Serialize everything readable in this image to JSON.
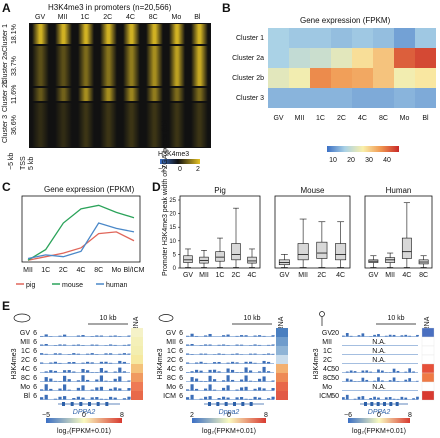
{
  "panelA": {
    "label": "A",
    "title": "H3K4me3 in promoters (n=20,566)",
    "stages": [
      "GV",
      "MII",
      "1C",
      "2C",
      "4C",
      "8C",
      "Mo",
      "Bl"
    ],
    "clusters": [
      "Cluster 1",
      "Cluster 2a",
      "Cluster 2b",
      "Cluster 3"
    ],
    "percents": [
      "18.1%",
      "33.7%",
      "11.6%",
      "36.6%"
    ],
    "tss": "TSS",
    "xmin": "−5 kb",
    "xmax": "5 kb",
    "legend_title": "H3K4me3",
    "legend_ticks": [
      "−2",
      "0",
      "2"
    ]
  },
  "panelB": {
    "label": "B",
    "title": "Gene expression (FPKM)",
    "rows": [
      "Cluster 1",
      "Cluster 2a",
      "Cluster 2b",
      "Cluster 3"
    ],
    "cols": [
      "GV",
      "MII",
      "1C",
      "2C",
      "4C",
      "8C",
      "Mo",
      "Bl"
    ],
    "values": [
      [
        15,
        14,
        14,
        13,
        14,
        13,
        10,
        14
      ],
      [
        15,
        18,
        19,
        22,
        27,
        30,
        40,
        42
      ],
      [
        22,
        24,
        36,
        34,
        33,
        30,
        24,
        26
      ],
      [
        12,
        12,
        12,
        12,
        11,
        11,
        12,
        11
      ]
    ],
    "legend_ticks": [
      "10",
      "20",
      "30",
      "40"
    ]
  },
  "panelC": {
    "label": "C",
    "title": "Gene expression (FPKM)",
    "chart_data": {
      "type": "line",
      "categories": [
        "MII",
        "1C",
        "2C",
        "4C",
        "8C",
        "Mo",
        "Bl/ICM"
      ],
      "series": [
        {
          "name": "pig",
          "color": "#e0665a",
          "values": [
            1,
            3,
            5,
            8,
            16,
            17,
            12
          ]
        },
        {
          "name": "mouse",
          "color": "#2ba35a",
          "values": [
            1,
            7,
            22,
            30,
            32,
            28,
            25
          ]
        },
        {
          "name": "human",
          "color": "#4a88c8",
          "values": [
            2,
            4,
            3,
            6,
            22,
            19,
            17
          ]
        }
      ],
      "ylim": [
        0,
        35
      ]
    },
    "x_labels": [
      "MII",
      "1C",
      "2C",
      "4C",
      "8C",
      "Mo",
      "Bl/ICM"
    ],
    "legend": [
      "pig",
      "mouse",
      "human"
    ]
  },
  "panelD": {
    "label": "D",
    "ylabel": "Promoter H3K4me3 peak width of ZGA genes (kb)",
    "yticks": [
      "0",
      "5",
      "10",
      "15",
      "20",
      "25"
    ],
    "chart_data": [
      {
        "type": "box",
        "title": "Pig",
        "categories": [
          "GV",
          "MII",
          "1C",
          "2C",
          "4C"
        ],
        "boxes": [
          [
            0.2,
            2,
            3,
            4.5,
            7
          ],
          [
            0.2,
            1.8,
            2.8,
            4,
            6.5
          ],
          [
            0.2,
            2.5,
            4,
            6,
            11
          ],
          [
            0.2,
            3,
            5,
            9,
            22
          ],
          [
            0.2,
            1.8,
            2.6,
            4,
            7
          ]
        ]
      },
      {
        "type": "box",
        "title": "Mouse",
        "categories": [
          "GV",
          "MII",
          "2C",
          "4C"
        ],
        "boxes": [
          [
            0.2,
            1.2,
            2,
            3,
            5
          ],
          [
            0.2,
            3,
            5,
            9,
            18
          ],
          [
            0.2,
            3.5,
            5.5,
            9.5,
            17
          ],
          [
            0.2,
            3,
            5,
            9,
            17
          ]
        ]
      },
      {
        "type": "box",
        "title": "Human",
        "categories": [
          "GV",
          "MII",
          "4C",
          "8C"
        ],
        "boxes": [
          [
            0.2,
            2,
            2.5,
            3,
            4.5
          ],
          [
            0.2,
            2,
            3,
            3.8,
            5.5
          ],
          [
            0.2,
            3.5,
            6,
            11,
            24
          ],
          [
            0.2,
            1.5,
            2.2,
            3,
            4.5
          ]
        ]
      }
    ]
  },
  "panelE": {
    "label": "E",
    "pig": {
      "rows": [
        "GV",
        "MII",
        "1C",
        "2C",
        "4C",
        "8C",
        "Mo",
        "Bl"
      ],
      "max": "6",
      "gene": "DPPA2",
      "scale": "10 kb",
      "rna": "RNA",
      "axis": "H3K4me3",
      "legend_ticks": [
        "−5",
        "0",
        "8"
      ],
      "legend_caption": "log₂(FPKM+0.01)",
      "rna_colors": [
        "#f5f2c8",
        "#f4f0b8",
        "#f3eeb0",
        "#f6e9a0",
        "#f4c27a",
        "#f09a60",
        "#ee7a55",
        "#e8694a"
      ]
    },
    "mouse": {
      "rows": [
        "GV",
        "MII",
        "1C",
        "2C",
        "4C",
        "8C",
        "Mo",
        "ICM"
      ],
      "max": "6",
      "gene": "Dppa2",
      "scale": "10 kb",
      "rna": "RNA",
      "axis": "H3K4me3",
      "legend_ticks": [
        "2",
        "0",
        "8"
      ],
      "legend_caption": "log₂(FPKM+0.01)",
      "rna_colors": [
        "#4a7fc0",
        "#6f9ccc",
        "#8fb4d6",
        "#c9dceb",
        "#f3b070",
        "#ee8a55",
        "#e8684a",
        "#e25a46"
      ]
    },
    "human": {
      "rows": [
        "GV",
        "MII",
        "1C",
        "2C",
        "4C",
        "8C",
        "Mo",
        "ICM"
      ],
      "max_vals": [
        "20",
        "",
        "",
        "",
        "50",
        "50",
        "",
        "50"
      ],
      "gene": "DPPA2",
      "scale": "10 kb",
      "rna": "RNA",
      "axis": "H3K4me3",
      "na": "N.A.",
      "legend_ticks": [
        "−6",
        "0",
        "8"
      ],
      "legend_caption": "log₂(FPKM+0.01)",
      "rna_colors": [
        "#4a6fc0",
        "#ffffff",
        "#ffffff",
        "#ffffff",
        "#e6503a",
        "#ef7a45",
        "#ffffff",
        "#d83a30"
      ]
    }
  }
}
